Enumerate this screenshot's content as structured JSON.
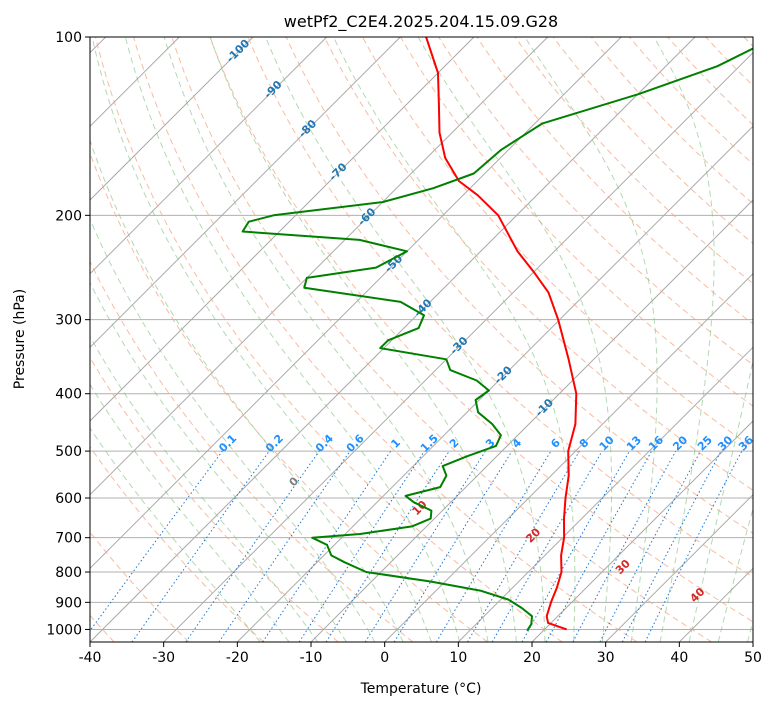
{
  "chart_data": {
    "type": "line",
    "title": "wetPf2_C2E4.2025.204.15.09.G28",
    "xlabel": "Temperature (°C)",
    "ylabel": "Pressure (hPa)",
    "xlim": [
      -40,
      50
    ],
    "ylim": [
      1050,
      100
    ],
    "y_scale": "log",
    "grid": true,
    "x_ticks": [
      -40,
      -30,
      -20,
      -10,
      0,
      10,
      20,
      30,
      40,
      50
    ],
    "y_ticks": [
      100,
      200,
      300,
      400,
      500,
      600,
      700,
      800,
      900,
      1000
    ],
    "series": [
      {
        "color": "#ff0000",
        "points": [
          {
            "p": 1000,
            "t": 23.0
          },
          {
            "p": 975,
            "t": 19.6
          },
          {
            "p": 950,
            "t": 18.5
          },
          {
            "p": 900,
            "t": 17.2
          },
          {
            "p": 850,
            "t": 16.0
          },
          {
            "p": 800,
            "t": 14.5
          },
          {
            "p": 750,
            "t": 12.2
          },
          {
            "p": 700,
            "t": 10.2
          },
          {
            "p": 650,
            "t": 7.6
          },
          {
            "p": 600,
            "t": 5.0
          },
          {
            "p": 550,
            "t": 2.4
          },
          {
            "p": 500,
            "t": -1.0
          },
          {
            "p": 450,
            "t": -3.7
          },
          {
            "p": 400,
            "t": -7.7
          },
          {
            "p": 350,
            "t": -13.4
          },
          {
            "p": 300,
            "t": -20.2
          },
          {
            "p": 270,
            "t": -25.2
          },
          {
            "p": 250,
            "t": -29.8
          },
          {
            "p": 230,
            "t": -35.0
          },
          {
            "p": 200,
            "t": -42.5
          },
          {
            "p": 185,
            "t": -48.0
          },
          {
            "p": 175,
            "t": -52.5
          },
          {
            "p": 160,
            "t": -57.5
          },
          {
            "p": 145,
            "t": -61.7
          },
          {
            "p": 130,
            "t": -65.6
          },
          {
            "p": 115,
            "t": -70.0
          },
          {
            "p": 100,
            "t": -76.5
          }
        ]
      },
      {
        "color": "#008000",
        "points": [
          {
            "p": 1005,
            "t": 17.8
          },
          {
            "p": 980,
            "t": 17.5
          },
          {
            "p": 950,
            "t": 16.5
          },
          {
            "p": 920,
            "t": 14.0
          },
          {
            "p": 890,
            "t": 11.0
          },
          {
            "p": 860,
            "t": 6.0
          },
          {
            "p": 830,
            "t": -2.0
          },
          {
            "p": 800,
            "t": -12.0
          },
          {
            "p": 770,
            "t": -16.3
          },
          {
            "p": 750,
            "t": -19.0
          },
          {
            "p": 720,
            "t": -21.0
          },
          {
            "p": 700,
            "t": -24.0
          },
          {
            "p": 690,
            "t": -18.0
          },
          {
            "p": 670,
            "t": -12.0
          },
          {
            "p": 650,
            "t": -10.5
          },
          {
            "p": 630,
            "t": -11.5
          },
          {
            "p": 610,
            "t": -15.0
          },
          {
            "p": 595,
            "t": -17.0
          },
          {
            "p": 575,
            "t": -13.5
          },
          {
            "p": 550,
            "t": -14.2
          },
          {
            "p": 530,
            "t": -16.0
          },
          {
            "p": 510,
            "t": -14.0
          },
          {
            "p": 490,
            "t": -11.5
          },
          {
            "p": 470,
            "t": -12.3
          },
          {
            "p": 450,
            "t": -15.0
          },
          {
            "p": 430,
            "t": -18.5
          },
          {
            "p": 410,
            "t": -20.5
          },
          {
            "p": 395,
            "t": -20.0
          },
          {
            "p": 380,
            "t": -23.0
          },
          {
            "p": 365,
            "t": -28.0
          },
          {
            "p": 350,
            "t": -30.0
          },
          {
            "p": 335,
            "t": -40.5
          },
          {
            "p": 325,
            "t": -40.5
          },
          {
            "p": 310,
            "t": -38.0
          },
          {
            "p": 295,
            "t": -39.0
          },
          {
            "p": 280,
            "t": -44.0
          },
          {
            "p": 265,
            "t": -59.0
          },
          {
            "p": 255,
            "t": -60.0
          },
          {
            "p": 245,
            "t": -52.0
          },
          {
            "p": 230,
            "t": -50.0
          },
          {
            "p": 220,
            "t": -58.0
          },
          {
            "p": 213,
            "t": -75.0
          },
          {
            "p": 205,
            "t": -75.5
          },
          {
            "p": 200,
            "t": -73.0
          },
          {
            "p": 190,
            "t": -60.0
          },
          {
            "p": 180,
            "t": -55.0
          },
          {
            "p": 170,
            "t": -51.5
          },
          {
            "p": 155,
            "t": -51.0
          },
          {
            "p": 140,
            "t": -49.0
          },
          {
            "p": 125,
            "t": -40.0
          },
          {
            "p": 112,
            "t": -33.0
          },
          {
            "p": 100,
            "t": -29.0
          }
        ]
      }
    ],
    "dry_adiabat_labels": [
      "-100",
      "-90",
      "-80",
      "-70",
      "-60",
      "-50",
      "-40",
      "-30",
      "-20",
      "-10"
    ],
    "mixing_ratio_labels": [
      "0.1",
      "0.2",
      "0.4",
      "0.6",
      "1",
      "1.5",
      "2",
      "3",
      "4",
      "6",
      "8",
      "10",
      "13",
      "16",
      "20",
      "25",
      "30",
      "36"
    ],
    "moist_adiabat_labels": [
      "0",
      "10",
      "20",
      "30",
      "40"
    ],
    "dry_adiabat_label_color": "#1f77b4",
    "mixing_ratio_label_color": "#1e90ff",
    "moist_label_color": "#d62728"
  }
}
